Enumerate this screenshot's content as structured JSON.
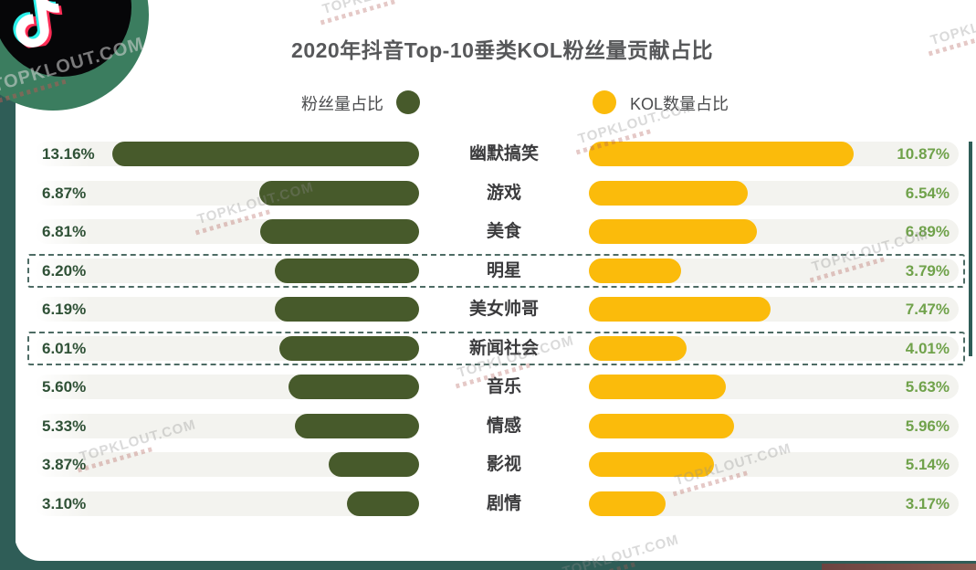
{
  "header": {
    "title": "2020年抖音Top-10垂类KOL粉丝量贡献占比"
  },
  "legend": {
    "left_label": "粉丝量占比",
    "right_label": "KOL数量占比"
  },
  "watermark": {
    "text": "TOPKLOUT.COM"
  },
  "colors": {
    "fan_bar": "#475A2B",
    "fan_value_text": "#2F5136",
    "kol_bar": "#FBBB0B",
    "kol_value_text": "#70A24B",
    "track": "#F3F3EF",
    "highlight_dash": "#4E6C65",
    "page_edge_teal": "#2F5D57",
    "badge_green": "#3B7D5F",
    "title_text": "#57585A"
  },
  "chart_data": {
    "type": "bar",
    "layout": "bidirectional-tornado",
    "title": "2020年抖音Top-10垂类KOL粉丝量贡献占比",
    "categories": [
      "幽默搞笑",
      "游戏",
      "美食",
      "明星",
      "美女帅哥",
      "新闻社会",
      "音乐",
      "情感",
      "影视",
      "剧情"
    ],
    "series": [
      {
        "name": "粉丝量占比",
        "side": "left",
        "color": "#475A2B",
        "value_text_color": "#2F5136",
        "values": [
          13.16,
          6.87,
          6.81,
          6.2,
          6.19,
          6.01,
          5.6,
          5.33,
          3.87,
          3.1
        ],
        "labels": [
          "13.16%",
          "6.87%",
          "6.81%",
          "6.20%",
          "6.19%",
          "6.01%",
          "5.60%",
          "5.33%",
          "3.87%",
          "3.10%"
        ]
      },
      {
        "name": "KOL数量占比",
        "side": "right",
        "color": "#FBBB0B",
        "value_text_color": "#70A24B",
        "values": [
          10.87,
          6.54,
          6.89,
          3.79,
          7.47,
          4.01,
          5.63,
          5.96,
          5.14,
          3.17
        ],
        "labels": [
          "10.87%",
          "6.54%",
          "6.89%",
          "3.79%",
          "7.47%",
          "4.01%",
          "5.63%",
          "5.96%",
          "5.14%",
          "3.17%"
        ]
      }
    ],
    "highlighted_rows": [
      "明星",
      "新闻社会"
    ],
    "axis": {
      "left_scale_max": 16.5,
      "right_scale_max": 15.2,
      "grid": false,
      "value_labels": "outer-ends"
    }
  }
}
